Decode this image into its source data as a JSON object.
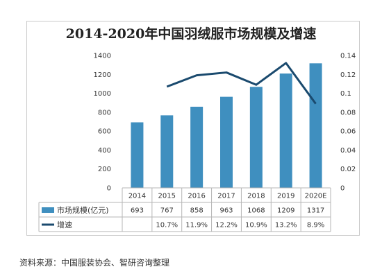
{
  "chart_data": {
    "type": "bar+line",
    "title": "2014-2020年中国羽绒服市场规模及增速",
    "categories": [
      "2014",
      "2015",
      "2016",
      "2017",
      "2018",
      "2019",
      "2020E"
    ],
    "series": [
      {
        "name": "市场规模(亿元)",
        "type": "bar",
        "axis": "left",
        "values": [
          693,
          767,
          858,
          963,
          1068,
          1209,
          1317
        ],
        "labels": [
          "693",
          "767",
          "858",
          "963",
          "1068",
          "1209",
          "1317"
        ],
        "color": "#3f8fbf"
      },
      {
        "name": "增速",
        "type": "line",
        "axis": "right",
        "values": [
          null,
          0.107,
          0.119,
          0.122,
          0.109,
          0.132,
          0.089
        ],
        "labels": [
          "",
          "10.7%",
          "11.9%",
          "12.2%",
          "10.9%",
          "13.2%",
          "8.9%"
        ],
        "color": "#1a4a6e"
      }
    ],
    "left_axis": {
      "min": 0,
      "max": 1400,
      "ticks": [
        "0",
        "200",
        "400",
        "600",
        "800",
        "1000",
        "1200",
        "1400"
      ]
    },
    "right_axis": {
      "min": 0,
      "max": 0.14,
      "ticks": [
        "0",
        "0.02",
        "0.04",
        "0.06",
        "0.08",
        "0.1",
        "0.12",
        "0.14"
      ]
    },
    "grid": false,
    "legend": "data-table-bottom"
  },
  "source": "资料来源：中国服装协会、智研咨询整理"
}
